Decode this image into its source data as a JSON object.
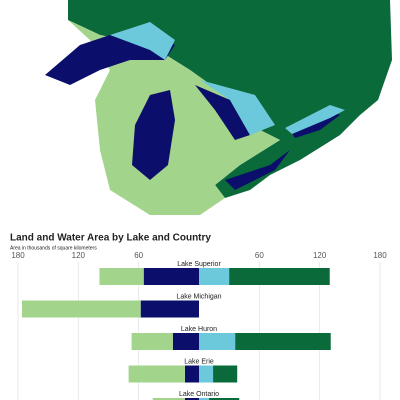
{
  "chart_data": {
    "type": "diverging-bar",
    "title": "Land and Water Area by Lake and Country",
    "subtitle": "Area in thousands of square kilometers",
    "categories": [
      "Lake Superior",
      "Lake Michigan",
      "Lake Huron",
      "Lake Erie",
      "Lake Ontario"
    ],
    "series": [
      {
        "color": "#0b0f6b",
        "side": "left",
        "values": [
          55,
          58,
          26,
          14,
          14
        ]
      },
      {
        "color": "#a3d48c",
        "side": "left",
        "values": [
          44,
          118,
          41,
          56,
          32
        ]
      },
      {
        "color": "#6cc9dc",
        "side": "right",
        "values": [
          30,
          0,
          36,
          14,
          10
        ]
      },
      {
        "color": "#0b6a3a",
        "side": "right",
        "values": [
          100,
          0,
          95,
          24,
          30
        ]
      }
    ],
    "xlim": [
      -180,
      180
    ],
    "xticks": [
      {
        "value": -180,
        "label": "180"
      },
      {
        "value": -120,
        "label": "120"
      },
      {
        "value": -60,
        "label": "60"
      },
      60,
      120,
      180
    ],
    "grid": true
  }
}
